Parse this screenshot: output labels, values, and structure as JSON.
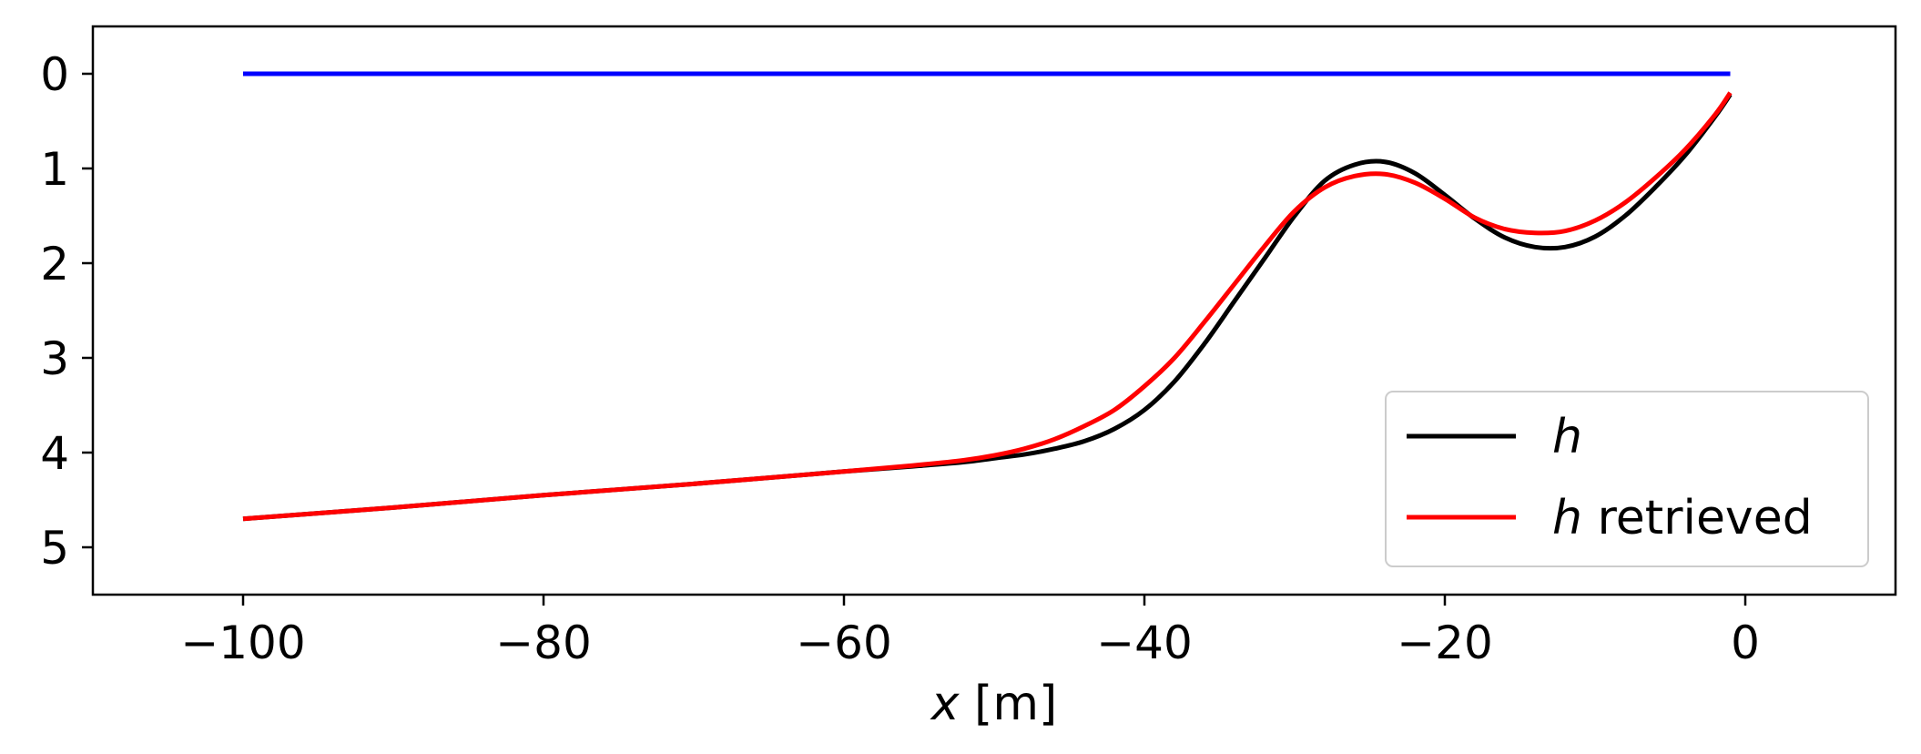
{
  "chart_data": {
    "type": "line",
    "xlabel_var": "x",
    "xlabel_unit": " [m]",
    "ylabel": "",
    "xlim": [
      -110,
      10
    ],
    "ylim": [
      5.5,
      -0.5
    ],
    "y_inverted": true,
    "xticks": [
      -100,
      -80,
      -60,
      -40,
      -20,
      0
    ],
    "xtick_labels": [
      "−100",
      "−80",
      "−60",
      "−40",
      "−20",
      "0"
    ],
    "yticks": [
      0,
      1,
      2,
      3,
      4,
      5
    ],
    "ytick_labels": [
      "0",
      "1",
      "2",
      "3",
      "4",
      "5"
    ],
    "grid": false,
    "legend_position": "lower-right",
    "series": [
      {
        "name": "",
        "color": "#0000ff",
        "x": [
          -100,
          -1
        ],
        "y": [
          0,
          0
        ]
      },
      {
        "name": "h",
        "legend_var": "h",
        "legend_suffix": "",
        "color": "#000000",
        "x": [
          -100,
          -90,
          -80,
          -70,
          -60,
          -55,
          -52,
          -50,
          -48,
          -46,
          -44,
          -42,
          -40,
          -38,
          -36,
          -34,
          -32,
          -30,
          -28,
          -26,
          -24,
          -22,
          -20,
          -18,
          -16,
          -14,
          -12,
          -10,
          -8,
          -6,
          -4,
          -2,
          -1
        ],
        "y": [
          4.7,
          4.58,
          4.45,
          4.33,
          4.2,
          4.14,
          4.1,
          4.06,
          4.02,
          3.96,
          3.88,
          3.75,
          3.55,
          3.25,
          2.85,
          2.4,
          1.95,
          1.5,
          1.13,
          0.96,
          0.93,
          1.05,
          1.28,
          1.53,
          1.73,
          1.83,
          1.83,
          1.72,
          1.5,
          1.2,
          0.86,
          0.45,
          0.22
        ]
      },
      {
        "name": "h retrieved",
        "legend_var": "h",
        "legend_suffix": " retrieved",
        "color": "#ff0000",
        "x": [
          -100,
          -90,
          -80,
          -70,
          -60,
          -55,
          -52,
          -50,
          -48,
          -46,
          -44,
          -42,
          -40,
          -38,
          -36,
          -34,
          -32,
          -30,
          -28,
          -26,
          -24,
          -22,
          -20,
          -18,
          -16,
          -14,
          -12,
          -10,
          -8,
          -6,
          -4,
          -2,
          -1
        ],
        "y": [
          4.7,
          4.58,
          4.45,
          4.33,
          4.2,
          4.13,
          4.08,
          4.03,
          3.96,
          3.86,
          3.72,
          3.55,
          3.3,
          3.0,
          2.62,
          2.22,
          1.82,
          1.45,
          1.2,
          1.08,
          1.06,
          1.15,
          1.32,
          1.52,
          1.64,
          1.68,
          1.66,
          1.55,
          1.36,
          1.1,
          0.8,
          0.43,
          0.2
        ]
      }
    ]
  }
}
